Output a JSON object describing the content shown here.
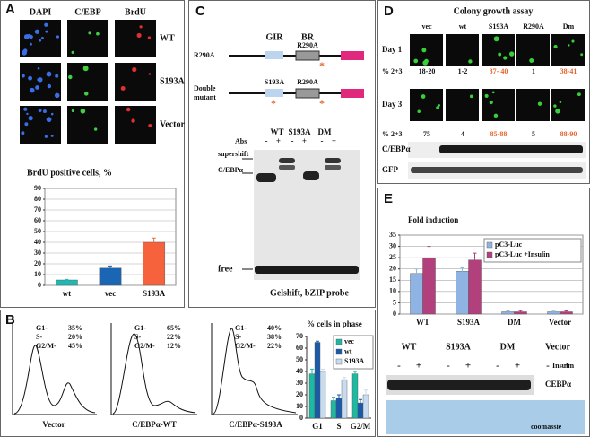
{
  "panel_a": {
    "label": "A",
    "columns": [
      "DAPI",
      "C/EBP",
      "BrdU"
    ],
    "rows": [
      "WT",
      "S193A",
      "Vector"
    ]
  },
  "panel_b": {
    "label": "B",
    "histograms": [
      {
        "phases": [
          "G1-",
          "S-",
          "G2/M-"
        ],
        "percents": [
          "35%",
          "20%",
          "45%"
        ],
        "xlabel": "Vector"
      },
      {
        "phases": [
          "G1-",
          "S-",
          "G2/M-"
        ],
        "percents": [
          "65%",
          "22%",
          "12%"
        ],
        "xlabel": "C/EBPα-WT"
      },
      {
        "phases": [
          "G1-",
          "S-",
          "G2/M-"
        ],
        "percents": [
          "40%",
          "38%",
          "22%"
        ],
        "xlabel": "C/EBPα-S193A"
      }
    ]
  },
  "panel_c": {
    "label": "C",
    "domains": [
      "GIR",
      "BR"
    ],
    "row1_label": "R290A",
    "row1_site": "R290A",
    "row2_label_lines": [
      "Double",
      "mutant"
    ],
    "row2_sites": [
      "S193A",
      "R290A"
    ],
    "lanes": [
      "WT",
      "S193A",
      "DM"
    ],
    "abs_label": "Abs",
    "signs": [
      "-",
      "+",
      "-",
      "+",
      "-",
      "+"
    ],
    "bands": [
      "supershift",
      "C/EBPα",
      "free"
    ],
    "caption": "Gelshift, bZIP probe"
  },
  "panel_d": {
    "label": "D",
    "title": "Colony growth assay",
    "columns": [
      "vec",
      "wt",
      "S193A",
      "R290A",
      "Dm"
    ],
    "days": [
      {
        "name": "Day 1",
        "metric": "% 2+3",
        "values": [
          "18-20",
          "1-2",
          "37- 40",
          "1",
          "38-41"
        ]
      },
      {
        "name": "Day 3",
        "metric": "% 2+3",
        "values": [
          "75",
          "4",
          "85-88",
          "5",
          "88-90"
        ]
      }
    ],
    "blots": [
      "C/EBPα",
      "GFP"
    ]
  },
  "panel_e": {
    "label": "E",
    "lanes": [
      "WT",
      "S193A",
      "DM",
      "Vector"
    ],
    "treatment": "Insulin",
    "signs": [
      "-",
      "+",
      "-",
      "+",
      "-",
      "+",
      "-",
      "+"
    ],
    "blots": [
      "CEBPα",
      "coomassie"
    ]
  },
  "chart_data": [
    {
      "type": "bar",
      "title": "BrdU positive cells, %",
      "categories": [
        "wt",
        "vec",
        "S193A"
      ],
      "values": [
        5,
        16,
        40
      ],
      "errors": [
        0.5,
        2,
        4
      ],
      "colors": [
        "#1fb8b3",
        "#1a66b5",
        "#f5623c"
      ],
      "ylim": [
        0,
        90
      ],
      "yticks": [
        0,
        10,
        20,
        30,
        40,
        50,
        60,
        70,
        80,
        90
      ],
      "grid": true
    },
    {
      "type": "bar",
      "title": "% cells in phase",
      "categories": [
        "G1",
        "S",
        "G2/M"
      ],
      "series": [
        {
          "name": "vec",
          "color": "#1fb8a0",
          "values": [
            38,
            15,
            38
          ],
          "errors": [
            4,
            3,
            2
          ]
        },
        {
          "name": "wt",
          "color": "#1a5aa8",
          "values": [
            65,
            17,
            13
          ],
          "errors": [
            1,
            3,
            3
          ]
        },
        {
          "name": "S193A",
          "color": "#c8dcf0",
          "values": [
            40,
            33,
            20
          ],
          "errors": [
            2,
            2,
            4
          ]
        }
      ],
      "ylim": [
        0,
        70
      ],
      "yticks": [
        0,
        10,
        20,
        30,
        40,
        50,
        60,
        70
      ],
      "grid": false,
      "legend": "upper right"
    },
    {
      "type": "bar",
      "title": "Fold induction",
      "categories": [
        "WT",
        "S193A",
        "DM",
        "Vector"
      ],
      "series": [
        {
          "name": "pC3-Luc",
          "color": "#8fb4e3",
          "values": [
            18,
            19,
            1,
            1
          ],
          "errors": [
            2,
            1.5,
            0.4,
            0.3
          ]
        },
        {
          "name": "pC3-Luc +Insulin",
          "color": "#b2407c",
          "values": [
            25,
            24,
            1,
            1
          ],
          "errors": [
            5,
            3,
            0.5,
            0.4
          ]
        }
      ],
      "ylim": [
        0,
        35
      ],
      "yticks": [
        0,
        5,
        10,
        15,
        20,
        25,
        30,
        35
      ],
      "grid": true,
      "legend": "upper right"
    }
  ]
}
